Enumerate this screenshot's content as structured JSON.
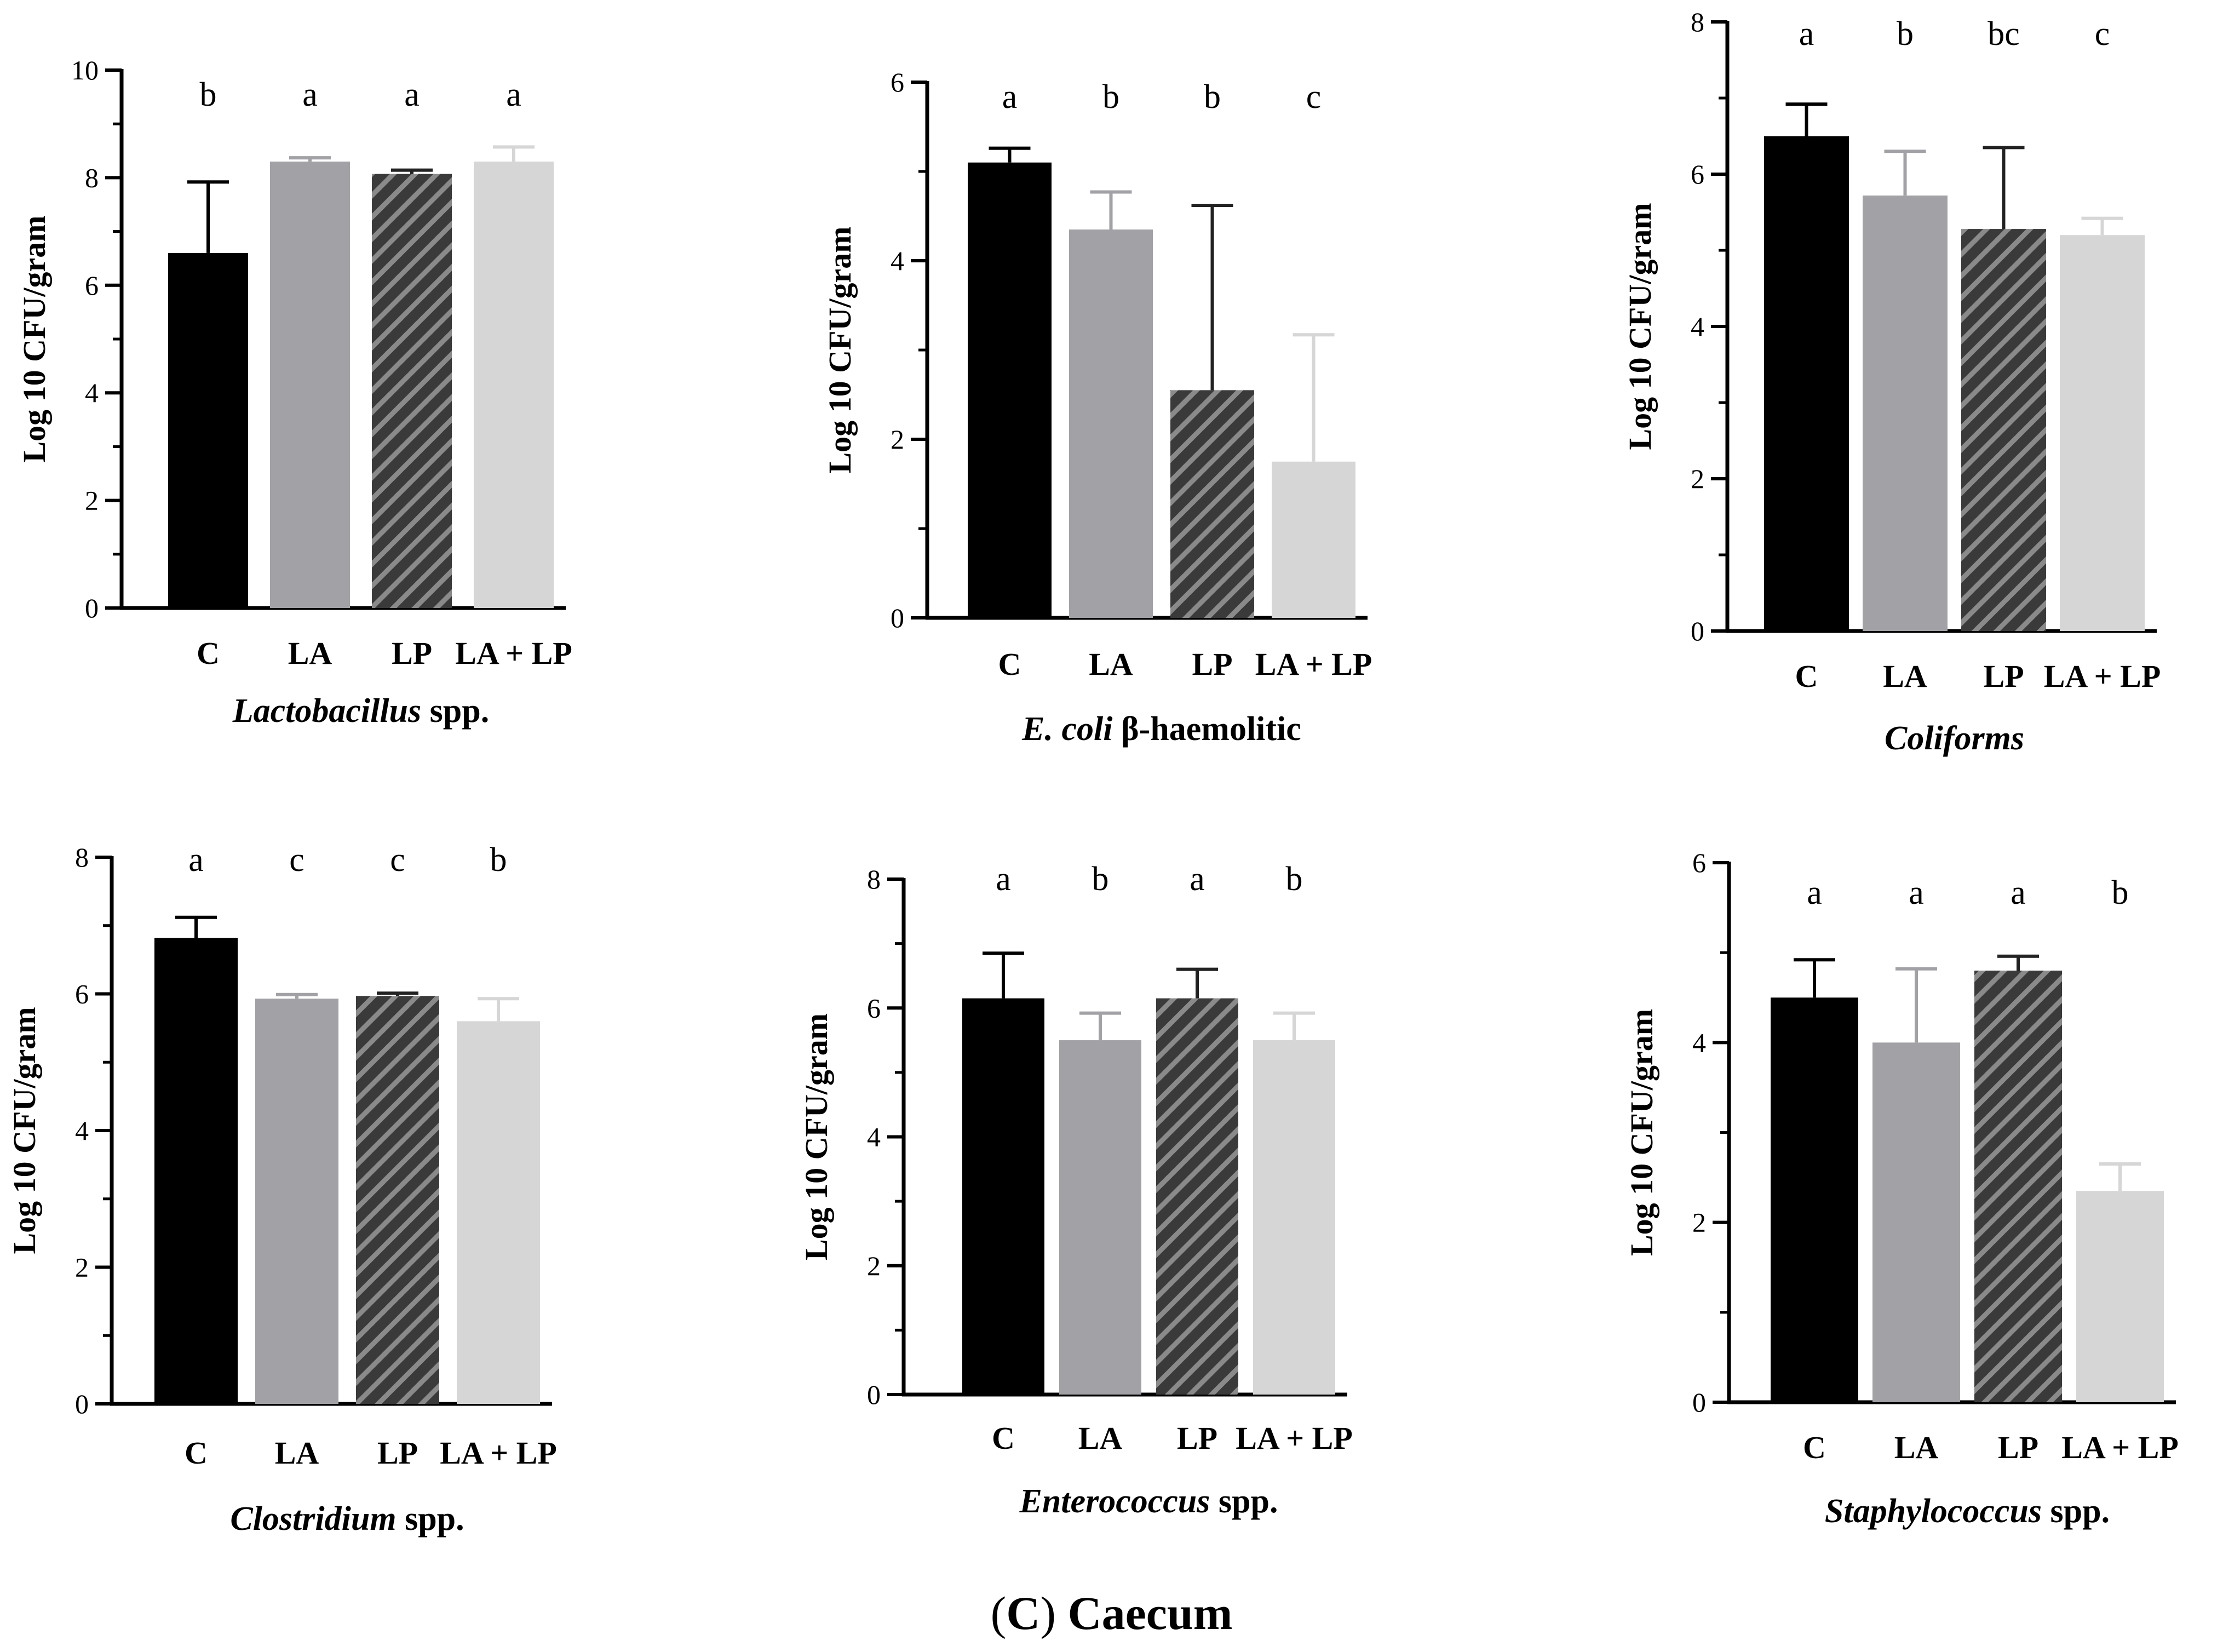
{
  "caption": {
    "open": "(",
    "letter": "C",
    "close": ")",
    "text": "Caecum"
  },
  "colors": {
    "C": "#000000",
    "LA": "#a2a2a6",
    "LP_fill": "#3a3a3a",
    "LP_stripe": "#8a8a8a",
    "LA_LP": "#d6d6d6",
    "axis": "#000000"
  },
  "chart_data": [
    {
      "type": "bar",
      "title_italic": "Lactobacillus",
      "title_rest": " spp.",
      "ylabel": "Log 10 CFU/gram",
      "ylim": [
        0,
        10
      ],
      "yticks": [
        0,
        2,
        4,
        6,
        8,
        10
      ],
      "categories": [
        "C",
        "LA",
        "LP",
        "LA + LP"
      ],
      "values": [
        6.6,
        8.3,
        8.07,
        8.3
      ],
      "errors": [
        1.32,
        0.07,
        0.07,
        0.27
      ],
      "letters": [
        "b",
        "a",
        "a",
        "a"
      ]
    },
    {
      "type": "bar",
      "title_italic": "E. coli",
      "title_rest": " β-haemolitic",
      "ylabel": "Log 10 CFU/gram",
      "ylim": [
        0,
        6
      ],
      "yticks": [
        0,
        2,
        4,
        6
      ],
      "categories": [
        "C",
        "LA",
        "LP",
        "LA + LP"
      ],
      "values": [
        5.1,
        4.35,
        2.55,
        1.75
      ],
      "errors": [
        0.16,
        0.42,
        2.07,
        1.42
      ],
      "letters": [
        "a",
        "b",
        "b",
        "c"
      ]
    },
    {
      "type": "bar",
      "title_italic": "Coliforms",
      "title_rest": "",
      "ylabel": "Log 10 CFU/gram",
      "ylim": [
        0,
        8
      ],
      "yticks": [
        0,
        2,
        4,
        6,
        8
      ],
      "categories": [
        "C",
        "LA",
        "LP",
        "LA + LP"
      ],
      "values": [
        6.5,
        5.72,
        5.28,
        5.2
      ],
      "errors": [
        0.42,
        0.58,
        1.07,
        0.22
      ],
      "letters": [
        "a",
        "b",
        "bc",
        "c"
      ]
    },
    {
      "type": "bar",
      "title_italic": "Clostridium",
      "title_rest": " spp.",
      "ylabel": "Log 10 CFU/gram",
      "ylim": [
        0,
        8
      ],
      "yticks": [
        0,
        2,
        4,
        6,
        8
      ],
      "categories": [
        "C",
        "LA",
        "LP",
        "LA + LP"
      ],
      "values": [
        6.82,
        5.93,
        5.97,
        5.6
      ],
      "errors": [
        0.3,
        0.06,
        0.04,
        0.33
      ],
      "letters": [
        "a",
        "c",
        "c",
        "b"
      ]
    },
    {
      "type": "bar",
      "title_italic": "Enterococcus",
      "title_rest": " spp.",
      "ylabel": "Log 10 CFU/gram",
      "ylim": [
        0,
        8
      ],
      "yticks": [
        0,
        2,
        4,
        6,
        8
      ],
      "categories": [
        "C",
        "LA",
        "LP",
        "LA + LP"
      ],
      "values": [
        6.15,
        5.5,
        6.15,
        5.5
      ],
      "errors": [
        0.7,
        0.42,
        0.45,
        0.42
      ],
      "letters": [
        "a",
        "b",
        "a",
        "b"
      ]
    },
    {
      "type": "bar",
      "title_italic": "Staphylococcus",
      "title_rest": " spp.",
      "ylabel": "Log 10 CFU/gram",
      "ylim": [
        0,
        6
      ],
      "yticks": [
        0,
        2,
        4,
        6
      ],
      "categories": [
        "C",
        "LA",
        "LP",
        "LA + LP"
      ],
      "values": [
        4.5,
        4.0,
        4.8,
        2.35
      ],
      "errors": [
        0.42,
        0.82,
        0.16,
        0.3
      ],
      "letters": [
        "a",
        "a",
        "a",
        "b"
      ]
    }
  ]
}
